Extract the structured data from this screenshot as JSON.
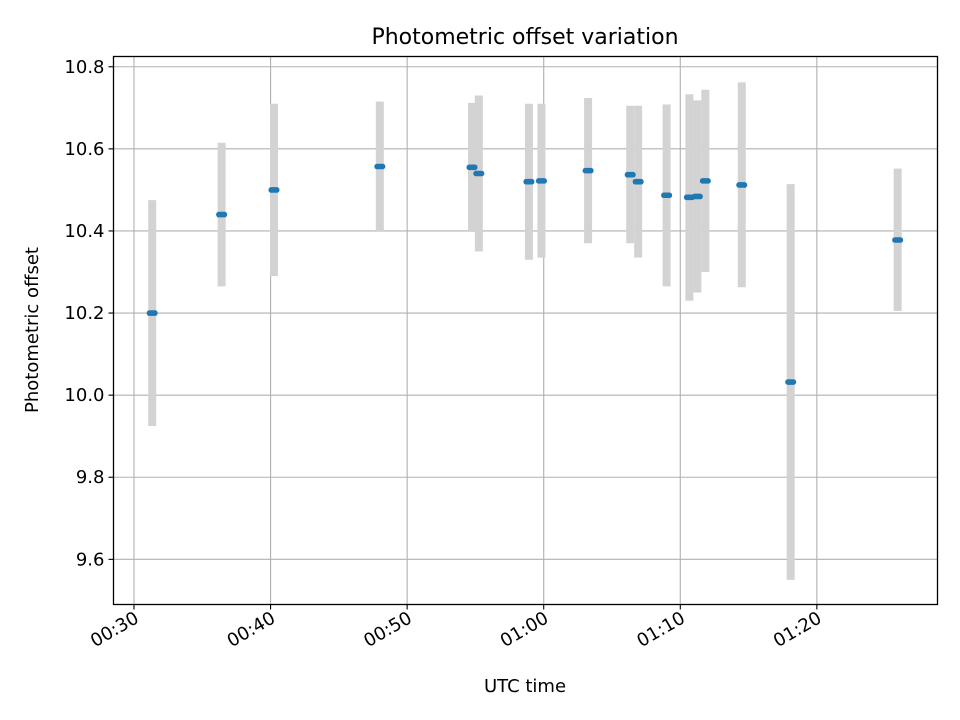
{
  "chart_data": {
    "type": "scatter",
    "title": "Photometric offset variation",
    "xlabel": "UTC time",
    "ylabel": "Photometric offset",
    "x_ticks": [
      "00:30",
      "00:40",
      "00:50",
      "01:00",
      "01:10",
      "01:20"
    ],
    "y_ticks": [
      "9.6",
      "9.8",
      "10.0",
      "10.2",
      "10.4",
      "10.6",
      "10.8"
    ],
    "xlim": [
      "00:28:30",
      "01:28:50"
    ],
    "ylim": [
      9.49,
      10.825
    ],
    "grid": true,
    "colors": {
      "point": "#1f77b4",
      "errorbar": "#d3d3d3",
      "grid": "#b0b0b0"
    },
    "series": [
      {
        "points": [
          {
            "x": "00:31:20",
            "y": 10.2,
            "err_low": 9.925,
            "err_high": 10.475
          },
          {
            "x": "00:36:25",
            "y": 10.44,
            "err_low": 10.265,
            "err_high": 10.615
          },
          {
            "x": "00:40:15",
            "y": 10.5,
            "err_low": 10.29,
            "err_high": 10.71
          },
          {
            "x": "00:48:00",
            "y": 10.557,
            "err_low": 10.4,
            "err_high": 10.715
          },
          {
            "x": "00:54:45",
            "y": 10.555,
            "err_low": 10.4,
            "err_high": 10.712
          },
          {
            "x": "00:55:15",
            "y": 10.54,
            "err_low": 10.35,
            "err_high": 10.73
          },
          {
            "x": "00:58:55",
            "y": 10.52,
            "err_low": 10.33,
            "err_high": 10.71
          },
          {
            "x": "00:59:50",
            "y": 10.522,
            "err_low": 10.335,
            "err_high": 10.71
          },
          {
            "x": "01:03:15",
            "y": 10.547,
            "err_low": 10.37,
            "err_high": 10.724
          },
          {
            "x": "01:06:20",
            "y": 10.537,
            "err_low": 10.37,
            "err_high": 10.705
          },
          {
            "x": "01:06:55",
            "y": 10.52,
            "err_low": 10.335,
            "err_high": 10.705
          },
          {
            "x": "01:09:00",
            "y": 10.487,
            "err_low": 10.265,
            "err_high": 10.708
          },
          {
            "x": "01:10:40",
            "y": 10.482,
            "err_low": 10.23,
            "err_high": 10.733
          },
          {
            "x": "01:11:15",
            "y": 10.484,
            "err_low": 10.25,
            "err_high": 10.718
          },
          {
            "x": "01:11:50",
            "y": 10.522,
            "err_low": 10.3,
            "err_high": 10.744
          },
          {
            "x": "01:14:30",
            "y": 10.512,
            "err_low": 10.263,
            "err_high": 10.762
          },
          {
            "x": "01:18:05",
            "y": 10.032,
            "err_low": 9.55,
            "err_high": 10.514
          },
          {
            "x": "01:25:55",
            "y": 10.378,
            "err_low": 10.205,
            "err_high": 10.552
          }
        ]
      }
    ]
  }
}
